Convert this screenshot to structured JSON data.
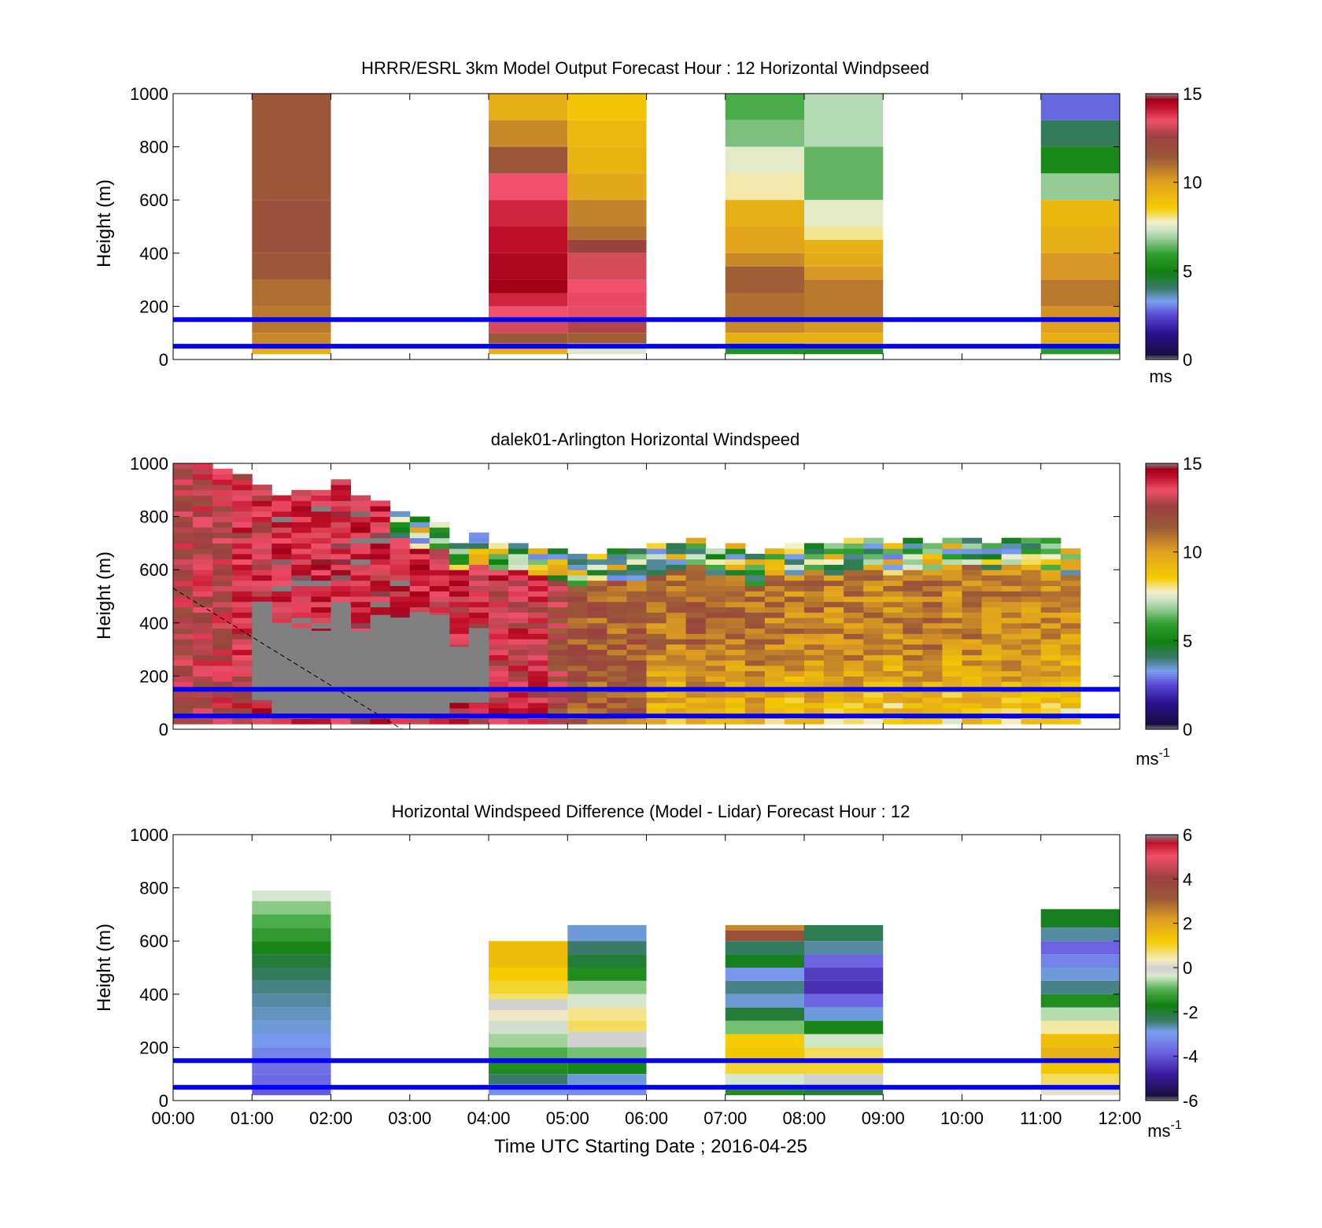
{
  "figure": {
    "xlabel": "Time UTC  Starting Date ; 2016-04-25",
    "xticks": [
      "00:00",
      "01:00",
      "02:00",
      "03:00",
      "04:00",
      "05:00",
      "06:00",
      "07:00",
      "08:00",
      "09:00",
      "10:00",
      "11:00",
      "12:00"
    ],
    "yticks": [
      "0",
      "200",
      "400",
      "600",
      "800",
      "1000"
    ],
    "ylabel": "Height (m)",
    "reference_lines": {
      "heights_m": [
        50,
        150
      ],
      "color": "#0000ff"
    }
  },
  "chart_data": [
    {
      "type": "heatmap",
      "title": "HRRR/ESRL 3km Model Output   Forecast Hour : 12 Horizontal Windpseed",
      "ylabel": "Height (m)",
      "xlim_hours": [
        0,
        12
      ],
      "ylim": [
        0,
        1000
      ],
      "colorbar": {
        "ticks": [
          "0",
          "5",
          "10",
          "15"
        ],
        "range": [
          0,
          15
        ],
        "unit": "ms"
      },
      "columns": [
        {
          "start_hour": 1,
          "end_hour": 2,
          "bottom_m": 20,
          "layers": [
            [
              1000,
              11.5
            ],
            [
              600,
              11.8
            ],
            [
              500,
              11.8
            ],
            [
              400,
              11.5
            ],
            [
              300,
              11.0
            ],
            [
              200,
              10.8
            ],
            [
              100,
              10.5
            ],
            [
              40,
              9.5
            ]
          ]
        },
        {
          "start_hour": 4,
          "end_hour": 5,
          "bottom_m": 20,
          "layers": [
            [
              1000,
              9.6
            ],
            [
              900,
              10.5
            ],
            [
              800,
              11.6
            ],
            [
              700,
              13.5
            ],
            [
              600,
              14.0
            ],
            [
              500,
              14.3
            ],
            [
              400,
              14.5
            ],
            [
              300,
              14.7
            ],
            [
              250,
              14.0
            ],
            [
              200,
              13.5
            ],
            [
              150,
              13.2
            ],
            [
              100,
              11.5
            ],
            [
              60,
              10.6
            ],
            [
              40,
              9.5
            ]
          ]
        },
        {
          "start_hour": 5,
          "end_hour": 6,
          "bottom_m": 20,
          "layers": [
            [
              1000,
              8.8
            ],
            [
              900,
              9.2
            ],
            [
              800,
              9.4
            ],
            [
              700,
              9.8
            ],
            [
              600,
              10.6
            ],
            [
              500,
              11.0
            ],
            [
              450,
              12.5
            ],
            [
              400,
              13.2
            ],
            [
              300,
              13.5
            ],
            [
              250,
              13.6
            ],
            [
              200,
              13.4
            ],
            [
              150,
              12.8
            ],
            [
              100,
              11.3
            ],
            [
              60,
              8.0
            ],
            [
              40,
              7.5
            ]
          ]
        },
        {
          "start_hour": 7,
          "end_hour": 8,
          "bottom_m": 20,
          "layers": [
            [
              1000,
              6.2
            ],
            [
              900,
              6.6
            ],
            [
              800,
              7.6
            ],
            [
              700,
              7.9
            ],
            [
              600,
              9.5
            ],
            [
              500,
              9.9
            ],
            [
              400,
              10.5
            ],
            [
              350,
              11.3
            ],
            [
              250,
              11.0
            ],
            [
              150,
              10.5
            ],
            [
              100,
              9.5
            ],
            [
              60,
              6.0
            ],
            [
              40,
              5.5
            ]
          ]
        },
        {
          "start_hour": 8,
          "end_hour": 9,
          "bottom_m": 20,
          "layers": [
            [
              1000,
              7.1
            ],
            [
              800,
              6.4
            ],
            [
              600,
              7.6
            ],
            [
              500,
              8.0
            ],
            [
              450,
              9.5
            ],
            [
              400,
              9.7
            ],
            [
              350,
              10.2
            ],
            [
              300,
              10.8
            ],
            [
              150,
              10.2
            ],
            [
              100,
              9.5
            ],
            [
              60,
              9.2
            ],
            [
              40,
              5.3
            ]
          ]
        },
        {
          "start_hour": 11,
          "end_hour": 12,
          "bottom_m": 20,
          "layers": [
            [
              1000,
              2.8
            ],
            [
              900,
              4.2
            ],
            [
              800,
              5.2
            ],
            [
              700,
              6.8
            ],
            [
              600,
              9.3
            ],
            [
              500,
              9.6
            ],
            [
              400,
              10.2
            ],
            [
              300,
              10.8
            ],
            [
              200,
              10.3
            ],
            [
              150,
              10.0
            ],
            [
              100,
              9.6
            ],
            [
              60,
              6.2
            ],
            [
              40,
              5.8
            ]
          ]
        }
      ]
    },
    {
      "type": "heatmap",
      "title": "dalek01-Arlington  Horizontal Windspeed",
      "ylabel": "Height (m)",
      "xlim_hours": [
        0,
        12
      ],
      "ylim": [
        0,
        1000
      ],
      "colorbar": {
        "ticks": [
          "0",
          "5",
          "10",
          "15"
        ],
        "range": [
          0,
          15
        ],
        "unit": "ms-1"
      },
      "column_width_hours": 0.25,
      "column_tops_m": [
        1000,
        1000,
        980,
        950,
        920,
        870,
        900,
        890,
        930,
        870,
        850,
        820,
        790,
        780,
        700,
        730,
        700,
        700,
        680,
        670,
        650,
        660,
        670,
        670,
        690,
        700,
        720,
        680,
        690,
        650,
        680,
        690,
        700,
        690,
        710,
        720,
        690,
        710,
        700,
        720,
        720,
        690,
        720,
        720,
        710,
        680
      ],
      "column_bottoms_m": [
        20,
        20,
        20,
        20,
        20,
        20,
        20,
        20,
        20,
        20,
        20,
        20,
        20,
        20,
        20,
        20,
        20,
        20,
        20,
        20,
        20,
        20,
        20,
        20,
        20,
        20,
        20,
        20,
        20,
        20,
        20,
        20,
        20,
        20,
        20,
        20,
        20,
        20,
        20,
        20,
        20,
        20,
        20,
        20,
        20,
        20
      ],
      "column_mean_speed": [
        12.8,
        13.0,
        13.2,
        13.4,
        13.6,
        14.0,
        14.2,
        14.3,
        14.3,
        14.2,
        14.0,
        14.0,
        13.8,
        13.7,
        13.6,
        13.5,
        13.6,
        13.4,
        13.5,
        12.4,
        11.6,
        11.5,
        11.4,
        11.3,
        11.0,
        10.9,
        11.4,
        11.2,
        11.0,
        11.1,
        10.8,
        10.6,
        10.9,
        10.6,
        10.7,
        10.5,
        10.4,
        10.7,
        10.8,
        10.3,
        10.6,
        10.5,
        10.6,
        10.3,
        10.4,
        10.2
      ],
      "low_signal_regions": [
        {
          "start_hour": 1.0,
          "end_hour": 1.25,
          "bottom_m": 110,
          "top_m": 480
        },
        {
          "start_hour": 1.25,
          "end_hour": 1.5,
          "bottom_m": 40,
          "top_m": 400
        },
        {
          "start_hour": 1.5,
          "end_hour": 1.75,
          "bottom_m": 40,
          "top_m": 380
        },
        {
          "start_hour": 1.75,
          "end_hour": 2.0,
          "bottom_m": 40,
          "top_m": 370
        },
        {
          "start_hour": 2.0,
          "end_hour": 2.25,
          "bottom_m": 40,
          "top_m": 470
        },
        {
          "start_hour": 2.25,
          "end_hour": 2.5,
          "bottom_m": 40,
          "top_m": 370
        },
        {
          "start_hour": 2.5,
          "end_hour": 2.75,
          "bottom_m": 40,
          "top_m": 430
        },
        {
          "start_hour": 2.75,
          "end_hour": 3.0,
          "bottom_m": 40,
          "top_m": 420
        },
        {
          "start_hour": 3.0,
          "end_hour": 3.25,
          "bottom_m": 40,
          "top_m": 440
        },
        {
          "start_hour": 3.25,
          "end_hour": 3.5,
          "bottom_m": 40,
          "top_m": 430
        },
        {
          "start_hour": 3.5,
          "end_hour": 3.75,
          "bottom_m": 100,
          "top_m": 310
        },
        {
          "start_hour": 3.75,
          "end_hour": 4.0,
          "bottom_m": 100,
          "top_m": 380
        }
      ],
      "dashed_line": {
        "start": [
          0,
          530
        ],
        "end": [
          2.9,
          0
        ]
      }
    },
    {
      "type": "heatmap",
      "title": "Horizontal Windspeed Difference (Model - Lidar) Forecast Hour : 12",
      "ylabel": "Height (m)",
      "xlabel": "Time UTC  Starting Date ; 2016-04-25",
      "xlim_hours": [
        0,
        12
      ],
      "ylim": [
        0,
        1000
      ],
      "colorbar": {
        "ticks": [
          "-6",
          "-4",
          "-2",
          "0",
          "2",
          "4",
          "6"
        ],
        "range": [
          -6,
          6
        ],
        "unit": "ms-1"
      },
      "columns": [
        {
          "start_hour": 1,
          "end_hour": 2,
          "bottom_m": 20,
          "layers": [
            [
              790,
              -0.3
            ],
            [
              750,
              -0.7
            ],
            [
              700,
              -1.0
            ],
            [
              650,
              -1.3
            ],
            [
              600,
              -1.6
            ],
            [
              550,
              -2.0
            ],
            [
              500,
              -2.3
            ],
            [
              450,
              -2.5
            ],
            [
              400,
              -2.6
            ],
            [
              350,
              -2.7
            ],
            [
              300,
              -2.8
            ],
            [
              250,
              -3.0
            ],
            [
              200,
              -3.3
            ],
            [
              150,
              -3.6
            ],
            [
              100,
              -3.7
            ],
            [
              50,
              -3.9
            ]
          ]
        },
        {
          "start_hour": 4,
          "end_hour": 5,
          "bottom_m": 20,
          "layers": [
            [
              600,
              1.5
            ],
            [
              500,
              1.2
            ],
            [
              450,
              1.0
            ],
            [
              400,
              0.7
            ],
            [
              380,
              0.0
            ],
            [
              340,
              0.3
            ],
            [
              300,
              -0.2
            ],
            [
              250,
              -0.6
            ],
            [
              200,
              -1.0
            ],
            [
              150,
              -1.5
            ],
            [
              100,
              -2.4
            ],
            [
              60,
              -2.8
            ],
            [
              40,
              -3.1
            ]
          ]
        },
        {
          "start_hour": 5,
          "end_hour": 6,
          "bottom_m": 20,
          "layers": [
            [
              660,
              -2.8
            ],
            [
              600,
              -2.4
            ],
            [
              550,
              -2.0
            ],
            [
              500,
              -1.5
            ],
            [
              450,
              -0.7
            ],
            [
              400,
              -0.3
            ],
            [
              350,
              0.6
            ],
            [
              300,
              0.8
            ],
            [
              260,
              0.0
            ],
            [
              200,
              -0.8
            ],
            [
              150,
              -1.6
            ],
            [
              100,
              -2.8
            ],
            [
              60,
              -3.0
            ],
            [
              40,
              -3.2
            ]
          ]
        },
        {
          "start_hour": 7,
          "end_hour": 8,
          "bottom_m": 20,
          "layers": [
            [
              660,
              2.5
            ],
            [
              640,
              3.5
            ],
            [
              600,
              -2.3
            ],
            [
              550,
              -1.8
            ],
            [
              500,
              -3.0
            ],
            [
              450,
              -2.5
            ],
            [
              400,
              -2.8
            ],
            [
              350,
              -2.0
            ],
            [
              300,
              -0.8
            ],
            [
              250,
              1.2
            ],
            [
              200,
              1.3
            ],
            [
              150,
              1.0
            ],
            [
              100,
              -0.3
            ],
            [
              60,
              -1.0
            ],
            [
              40,
              -1.5
            ]
          ]
        },
        {
          "start_hour": 8,
          "end_hour": 9,
          "bottom_m": 20,
          "layers": [
            [
              660,
              -2.2
            ],
            [
              600,
              -2.6
            ],
            [
              550,
              -3.8
            ],
            [
              500,
              -4.3
            ],
            [
              450,
              -4.5
            ],
            [
              400,
              -3.8
            ],
            [
              350,
              -2.8
            ],
            [
              300,
              -1.6
            ],
            [
              250,
              -0.4
            ],
            [
              200,
              0.8
            ],
            [
              150,
              1.0
            ],
            [
              100,
              0.0
            ],
            [
              60,
              -1.0
            ],
            [
              40,
              -2.0
            ]
          ]
        },
        {
          "start_hour": 11,
          "end_hour": 12,
          "bottom_m": 20,
          "layers": [
            [
              720,
              -1.8
            ],
            [
              650,
              -2.6
            ],
            [
              600,
              -3.8
            ],
            [
              550,
              -3.3
            ],
            [
              500,
              -2.8
            ],
            [
              450,
              -2.5
            ],
            [
              400,
              -1.5
            ],
            [
              350,
              -0.5
            ],
            [
              300,
              0.5
            ],
            [
              250,
              1.5
            ],
            [
              200,
              1.8
            ],
            [
              150,
              1.3
            ],
            [
              100,
              0.8
            ],
            [
              60,
              0.4
            ],
            [
              40,
              0.2
            ]
          ]
        }
      ]
    }
  ]
}
